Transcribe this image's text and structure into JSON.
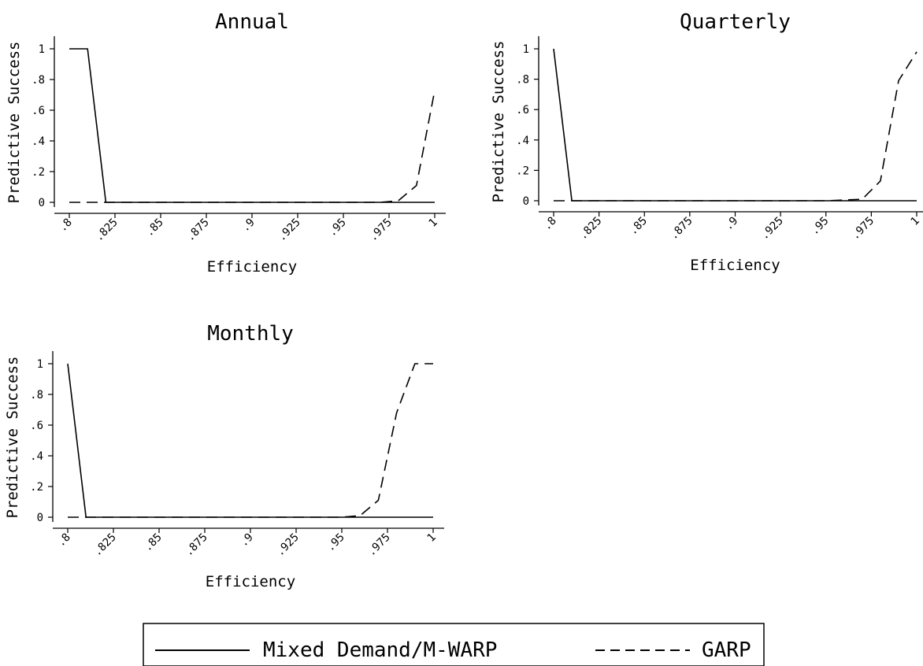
{
  "chart_data": [
    {
      "type": "line",
      "title": "Annual",
      "xlabel": "Efficiency",
      "ylabel": "Predictive Success",
      "xlim": [
        0.8,
        1.0
      ],
      "ylim": [
        0,
        1
      ],
      "x_ticks": [
        ".8",
        ".825",
        ".85",
        ".875",
        ".9",
        ".925",
        ".95",
        ".975",
        "1"
      ],
      "y_ticks": [
        "0",
        ".2",
        ".4",
        ".6",
        ".8",
        "1"
      ],
      "series": [
        {
          "name": "Mixed Demand/M-WARP",
          "style": "solid",
          "x": [
            0.8,
            0.81,
            0.82,
            0.83,
            0.85,
            0.9,
            0.95,
            0.97,
            0.98,
            0.99,
            1.0
          ],
          "y": [
            1,
            1,
            0,
            0,
            0,
            0,
            0,
            0,
            0,
            0,
            0
          ]
        },
        {
          "name": "GARP",
          "style": "dashed",
          "x": [
            0.8,
            0.81,
            0.85,
            0.9,
            0.95,
            0.97,
            0.98,
            0.99,
            1.0
          ],
          "y": [
            0,
            0,
            0,
            0,
            0,
            0,
            0.01,
            0.11,
            0.73
          ]
        }
      ]
    },
    {
      "type": "line",
      "title": "Quarterly",
      "xlabel": "Efficiency",
      "ylabel": "Predictive Success",
      "xlim": [
        0.8,
        1.0
      ],
      "ylim": [
        0,
        1
      ],
      "x_ticks": [
        ".8",
        ".825",
        ".85",
        ".875",
        ".9",
        ".925",
        ".95",
        ".975",
        "1"
      ],
      "y_ticks": [
        "0",
        ".2",
        ".4",
        ".6",
        ".8",
        "1"
      ],
      "series": [
        {
          "name": "Mixed Demand/M-WARP",
          "style": "solid",
          "x": [
            0.8,
            0.81,
            0.85,
            0.9,
            0.95,
            0.97,
            0.98,
            0.99,
            1.0
          ],
          "y": [
            1,
            0,
            0,
            0,
            0,
            0,
            0,
            0,
            0
          ]
        },
        {
          "name": "GARP",
          "style": "dashed",
          "x": [
            0.8,
            0.85,
            0.9,
            0.95,
            0.97,
            0.98,
            0.99,
            1.0
          ],
          "y": [
            0,
            0,
            0,
            0,
            0.01,
            0.13,
            0.79,
            0.98
          ]
        }
      ]
    },
    {
      "type": "line",
      "title": "Monthly",
      "xlabel": "Efficiency",
      "ylabel": "Predictive Success",
      "xlim": [
        0.8,
        1.0
      ],
      "ylim": [
        0,
        1
      ],
      "x_ticks": [
        ".8",
        ".825",
        ".85",
        ".875",
        ".9",
        ".925",
        ".95",
        ".975",
        "1"
      ],
      "y_ticks": [
        "0",
        ".2",
        ".4",
        ".6",
        ".8",
        "1"
      ],
      "series": [
        {
          "name": "Mixed Demand/M-WARP",
          "style": "solid",
          "x": [
            0.8,
            0.81,
            0.85,
            0.9,
            0.95,
            0.97,
            0.98,
            0.99,
            1.0
          ],
          "y": [
            1,
            0,
            0,
            0,
            0,
            0,
            0,
            0,
            0
          ]
        },
        {
          "name": "GARP",
          "style": "dashed",
          "x": [
            0.8,
            0.85,
            0.9,
            0.95,
            0.96,
            0.97,
            0.98,
            0.99,
            1.0
          ],
          "y": [
            0,
            0,
            0,
            0,
            0.01,
            0.11,
            0.68,
            1,
            1
          ]
        }
      ]
    }
  ],
  "legend": {
    "placement": "bottom-center",
    "items": [
      {
        "label": "Mixed Demand/M-WARP",
        "style": "solid"
      },
      {
        "label": "GARP",
        "style": "dashed"
      }
    ]
  }
}
